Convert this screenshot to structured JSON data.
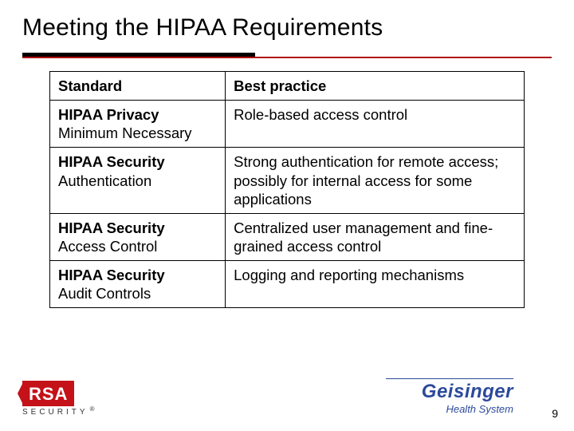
{
  "title": "Meeting the HIPAA Requirements",
  "rule": {
    "black_width_pct": 44,
    "black_color": "#000000",
    "red_color": "#b10e0e"
  },
  "table": {
    "columns": {
      "c0": "Standard",
      "c1": "Best practice"
    },
    "col_widths_pct": [
      37,
      63
    ],
    "border_color": "#000000",
    "fontsize": 18.5,
    "rows": [
      {
        "std_bold": "HIPAA Privacy",
        "std_sub": "Minimum Necessary",
        "bp": "Role-based access control"
      },
      {
        "std_bold": "HIPAA Security",
        "std_sub": "Authentication",
        "bp": "Strong authentication for remote access; possibly for internal access for some applications"
      },
      {
        "std_bold": "HIPAA Security",
        "std_sub": "Access Control",
        "bp": "Centralized user management and fine-grained access control"
      },
      {
        "std_bold": "HIPAA Security",
        "std_sub": "Audit Controls",
        "bp": "Logging and reporting mechanisms"
      }
    ]
  },
  "logos": {
    "left": {
      "name": "RSA",
      "sub": "SECURITY",
      "bg": "#c51118"
    },
    "right": {
      "name": "Geisinger",
      "sub": "Health System",
      "color": "#2b4a9b"
    }
  },
  "page_number": "9"
}
